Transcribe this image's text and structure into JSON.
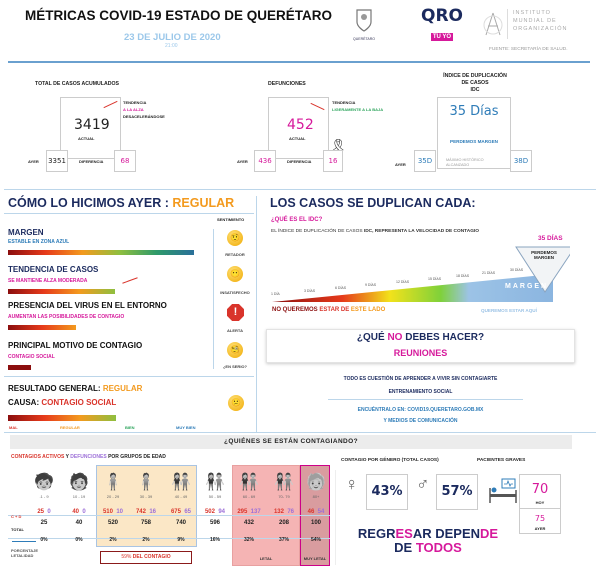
{
  "header": {
    "title": "MÉTRICAS COVID-19 ESTADO DE QUERÉTARO",
    "date": "23 DE JULIO DE 2020",
    "time": "21:00",
    "logo_queretaro": "QUERÉTARO",
    "logo_qro": "QRO",
    "logo_tuyo": "TÚ YO",
    "logo_imo_lines": [
      "INSTITUTO",
      "MUNDIAL DE",
      "ORGANIZACIÓN"
    ],
    "source": "FUENTE: SECRETARÍA DE SALUD."
  },
  "cases": {
    "label": "TOTAL DE CASOS ACUMULADOS",
    "value": "3419",
    "value_label": "ACTUAL",
    "trend_title": "TENDENCIA",
    "trend_line1": "A LA ALZA",
    "trend_line2": "DESACELERÁNDOSE",
    "ayer_label": "AYER",
    "ayer": "3351",
    "diff_label": "DIFERENCIA",
    "diff": "68"
  },
  "deaths": {
    "label": "DEFUNCIONES",
    "value": "452",
    "value_label": "ACTUAL",
    "trend_title": "TENDENCIA",
    "trend_line1": "LIGERAMENTE A LA BAJA",
    "ayer_label": "AYER",
    "ayer": "436",
    "diff_label": "DIFERENCIA",
    "diff": "16"
  },
  "idc": {
    "label_lines": [
      "ÍNDICE DE DUPLICACIÓN",
      "DE CASOS",
      "IDC"
    ],
    "value": "35 Días",
    "status": "PERDEMOS MARGEN",
    "ayer_label": "AYER",
    "ayer": "35D",
    "max_label_lines": [
      "MÁXIMO HISTÓRICO",
      "ALCANZADO"
    ],
    "max": "38D"
  },
  "yesterday": {
    "title": "CÓMO LO HICIMOS AYER : ",
    "rating": "REGULAR",
    "sentiment_header": "SENTIMIENTO",
    "items": [
      {
        "title": "MARGEN",
        "subtitle": "ESTABLE EN ZONA AZUL",
        "level": 0.95,
        "sentiment": "RETADOR",
        "icon": "skeptical-face-icon"
      },
      {
        "title": "TENDENCIA DE CASOS",
        "subtitle": "SE MANTIENE ALZA MODERADA",
        "level": 0.55,
        "sentiment": "INSATISFECHO",
        "icon": "neutral-face-icon"
      },
      {
        "title": "PRESENCIA DEL VIRUS EN EL ENTORNO",
        "subtitle": "AUMENTAN LAS POSIBILIDADES DE CONTAGIO",
        "level": 0.35,
        "sentiment": "ALERTA",
        "icon": "alert-icon"
      },
      {
        "title": "PRINCIPAL MOTIVO DE CONTAGIO",
        "subtitle": "CONTAGIO SOCIAL",
        "level": 0.12,
        "sentiment": "¿EN SERIO?",
        "icon": "monocle-face-icon"
      }
    ],
    "result_label": "RESULTADO GENERAL: ",
    "result": "REGULAR",
    "cause_label": "CAUSA: ",
    "cause": "CONTAGIO SOCIAL",
    "result_level": 0.55,
    "scale": [
      "MAL",
      "REGULAR",
      "BIEN",
      "MUY BIEN"
    ]
  },
  "doubling": {
    "title": "LOS CASOS SE DUPLICAN CADA:",
    "question": "¿QUÉ ES EL IDC?",
    "desc_plain": "EL ÍNDICE DE DUPLICACIÓN DE CASOS ",
    "desc_bold": "IDC, REPRESENTA LA VELOCIDAD DE CONTAGIO",
    "current": "35 DÍAS",
    "marker_text": "PERDEMOS MARGEN",
    "ticks": [
      "1 DÍA",
      "3 DÍAS",
      "6 DÍAS",
      "9 DÍAS",
      "12 DÍAS",
      "15 DÍAS",
      "18 DÍAS",
      "21 DÍAS",
      "30 DÍAS"
    ],
    "margin_label": "MARGEN",
    "bad_1": "NO QUEREMOS ",
    "bad_2": "ESTAR DE ",
    "bad_3": "ESTE LADO",
    "good": "QUEREMOS ESTAR AQUÍ"
  },
  "dont": {
    "q1": "¿QUÉ ",
    "q2": "NO",
    "q3": " DEBES HACER?",
    "answer": "REUNIONES"
  },
  "message": {
    "line1": "TODO ES CUESTIÓN DE APRENDER A VIVIR SIN CONTAGIARTE",
    "line2": "ENTRENAMIENTO SOCIAL",
    "link1": "ENCUÉNTRALO EN: COVID19.QUERETARO.GOB.MX",
    "link2": "Y MEDIOS DE COMUNICACIÓN"
  },
  "who": {
    "title": "¿QUIÉNES SE ESTÁN CONTAGIANDO?",
    "age_title_1": "CONTAGIOS ACTIVOS",
    "age_title_2": " Y ",
    "age_title_3": "DEFUNCIONES",
    "age_title_4": " POR GRUPOS DE EDAD",
    "cd_label": "C + D",
    "total_label": "TOTAL",
    "lethality_label_lines": [
      "PORCENTAJE",
      "LETALIDAD"
    ],
    "groups": [
      {
        "age": ".1 - 9",
        "c": "25",
        "d": "0",
        "total": "25",
        "pct": "0%"
      },
      {
        "age": "10 - 19",
        "c": "40",
        "d": "0",
        "total": "40",
        "pct": "0%"
      },
      {
        "age": "20 - 29",
        "c": "510",
        "d": "10",
        "total": "520",
        "pct": "2%"
      },
      {
        "age": "30 - 39",
        "c": "742",
        "d": "16",
        "total": "758",
        "pct": "2%"
      },
      {
        "age": "40 - 49",
        "c": "675",
        "d": "65",
        "total": "740",
        "pct": "9%"
      },
      {
        "age": "50 - 59",
        "c": "502",
        "d": "94",
        "total": "596",
        "pct": "16%"
      },
      {
        "age": "60 - 69",
        "c": "295",
        "d": "137",
        "total": "432",
        "pct": "32%"
      },
      {
        "age": "70- 79",
        "c": "132",
        "d": "76",
        "total": "208",
        "pct": "37%"
      },
      {
        "age": "80+",
        "c": "46",
        "d": "54",
        "total": "100",
        "pct": "54%"
      }
    ],
    "contagio_pct": "59%",
    "contagio_label": " DEL CONTAGIO",
    "letal": "LETAL",
    "muy_letal": "MUY LETAL",
    "gender_title": "CONTAGIO POR GÉNERO (TOTAL CASOS)",
    "female_pct": "43%",
    "male_pct": "57%",
    "severe_title": "PACIENTES GRAVES",
    "severe_today": "70",
    "today_label": "HOY",
    "severe_yesterday": "75",
    "yesterday_label": "AYER",
    "slogan_1a": "REGR",
    "slogan_1b": "ES",
    "slogan_1c": "AR DEPEN",
    "slogan_1d": "DE",
    "slogan_2a": "DE ",
    "slogan_2b": "TODOS"
  },
  "colors": {
    "pink": "#d6199b",
    "blue": "#2e7cb8",
    "orange": "#f39a1e",
    "red": "#d9342b",
    "navy": "#1b2a5e"
  }
}
